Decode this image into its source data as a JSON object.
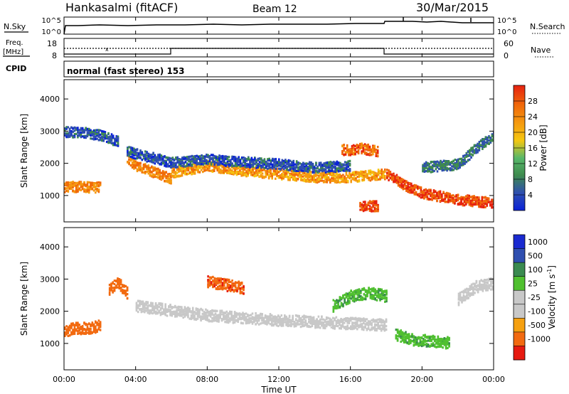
{
  "header": {
    "station": "Hankasalmi (fitACF)",
    "beam": "Beam 12",
    "date": "30/Mar/2015"
  },
  "strips": {
    "nsky_label": "N.Sky",
    "nsky_ticks": [
      "10^5",
      "10^0"
    ],
    "nsearch_label": "N.Search",
    "nsearch_ticks": [
      "10^5",
      "10^0"
    ],
    "freq_label_1": "Freq.",
    "freq_label_2": "[MHz]",
    "freq_ticks": [
      "18",
      "8"
    ],
    "nave_label": "Nave",
    "nave_ticks": [
      "60",
      "0"
    ],
    "cpid_label": "CPID",
    "cpid_text": "normal (fast stereo) 153"
  },
  "x_axis": {
    "label": "Time UT",
    "ticks": [
      "00:00",
      "04:00",
      "08:00",
      "12:00",
      "16:00",
      "20:00",
      "00:00"
    ]
  },
  "colors": {
    "power": [
      "#0a22d8",
      "#2f4fb0",
      "#3e8a4e",
      "#58b86a",
      "#f5c710",
      "#f59a10",
      "#f06a0a",
      "#e62210"
    ],
    "velocity": [
      "#e61a10",
      "#f26a10",
      "#f5a010",
      "#c8c8c8",
      "#c8c8c8",
      "#50c030",
      "#3a8a50",
      "#2f4fb0",
      "#1a2ad0"
    ]
  },
  "chart_data": [
    {
      "type": "heatmap",
      "title": "",
      "xlabel": "Time UT",
      "ylabel": "Slant Range [km]",
      "xlim": [
        0,
        24
      ],
      "ylim": [
        180,
        4600
      ],
      "y_ticks": [
        "1000",
        "2000",
        "3000",
        "4000"
      ],
      "colorbar": {
        "label": "Power [dB]",
        "ticks": [
          "4",
          "8",
          "12",
          "16",
          "20",
          "24",
          "28"
        ],
        "range": [
          0,
          32
        ]
      },
      "series": [
        {
          "x": [
            0,
            0.5,
            1,
            1.5,
            2
          ],
          "y": [
            1300,
            1300,
            1300,
            1280,
            1300
          ],
          "value": 24
        },
        {
          "x": [
            3.5,
            4,
            4.5,
            5,
            5.5,
            6
          ],
          "y": [
            2200,
            1950,
            1850,
            1750,
            1650,
            1550
          ],
          "value": 24
        },
        {
          "x": [
            6,
            8,
            10,
            12,
            14,
            16,
            17.9
          ],
          "y": [
            1750,
            1950,
            1800,
            1700,
            1600,
            1600,
            1700
          ],
          "value": 22
        },
        {
          "x": [
            18,
            19,
            20,
            21,
            22,
            23,
            24
          ],
          "y": [
            1700,
            1350,
            1100,
            1000,
            900,
            850,
            800
          ],
          "value": 28
        },
        {
          "x": [
            15.5,
            16,
            16.5,
            17,
            17.5
          ],
          "y": [
            2450,
            2450,
            2500,
            2450,
            2400
          ],
          "value": 26
        },
        {
          "x": [
            16.5,
            17,
            17.5
          ],
          "y": [
            700,
            700,
            700
          ],
          "value": 28
        },
        {
          "x": [
            3.5,
            6,
            8,
            12,
            14,
            16
          ],
          "y": [
            2400,
            2050,
            2150,
            2000,
            1900,
            1950
          ],
          "value": 6
        },
        {
          "x": [
            0,
            1,
            2,
            3
          ],
          "y": [
            3000,
            3000,
            2900,
            2700
          ],
          "value": 6
        },
        {
          "x": [
            20,
            22,
            23,
            24
          ],
          "y": [
            1900,
            2000,
            2500,
            2900
          ],
          "value": 8
        }
      ]
    },
    {
      "type": "heatmap",
      "title": "",
      "xlabel": "Time UT",
      "ylabel": "Slant Range [km]",
      "xlim": [
        0,
        24
      ],
      "ylim": [
        180,
        4600
      ],
      "y_ticks": [
        "1000",
        "2000",
        "3000",
        "4000"
      ],
      "colorbar": {
        "label": "Velocity [m s-1]",
        "label_main": "Velocity  [m s",
        "label_sup": "-1",
        "label_end": "]",
        "ticks": [
          "1000",
          "500",
          "100",
          "25",
          "-25",
          "-100",
          "-500",
          "-1000"
        ],
        "range": [
          -1000,
          1000
        ]
      },
      "series": [
        {
          "x": [
            0,
            0.5,
            1,
            1.5,
            2
          ],
          "y": [
            1400,
            1500,
            1500,
            1500,
            1600
          ],
          "value": -300
        },
        {
          "x": [
            2.5,
            3,
            3.5
          ],
          "y": [
            2700,
            2900,
            2600
          ],
          "value": -200
        },
        {
          "x": [
            8,
            9,
            10
          ],
          "y": [
            2950,
            2850,
            2750
          ],
          "value": -400
        },
        {
          "x": [
            4,
            8,
            12,
            16,
            18
          ],
          "y": [
            2200,
            1900,
            1750,
            1650,
            1600
          ],
          "value": 0
        },
        {
          "x": [
            15,
            16,
            17,
            18
          ],
          "y": [
            2200,
            2500,
            2600,
            2500
          ],
          "value": 80
        },
        {
          "x": [
            18.5,
            19.5,
            20.5,
            21.5
          ],
          "y": [
            1300,
            1150,
            1100,
            1050
          ],
          "value": 80
        },
        {
          "x": [
            22,
            23,
            24
          ],
          "y": [
            2400,
            2800,
            2900
          ],
          "value": 0
        }
      ]
    }
  ]
}
